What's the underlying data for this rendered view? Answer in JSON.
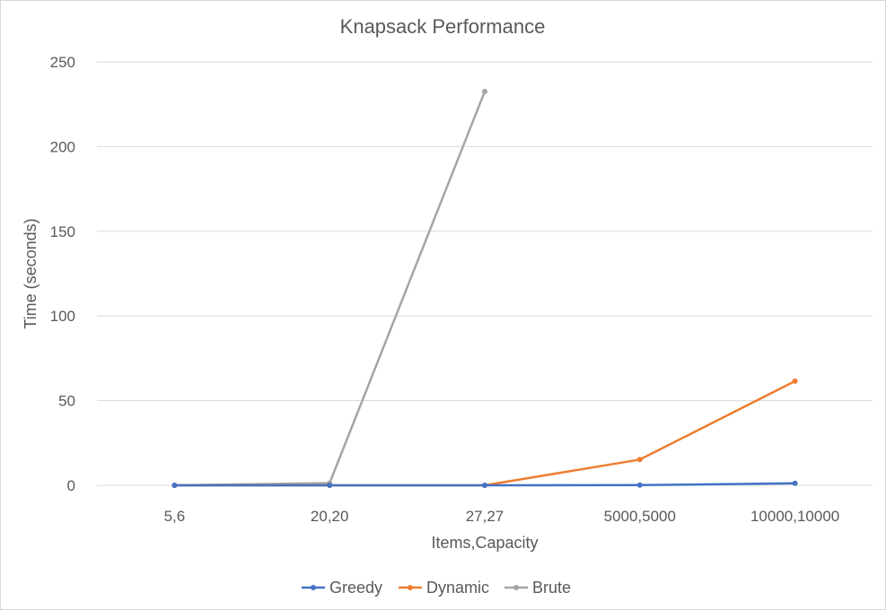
{
  "chart_data": {
    "type": "line",
    "title": "Knapsack Performance",
    "xlabel": "Items,Capacity",
    "ylabel": "Time (seconds)",
    "categories": [
      "5,6",
      "20,20",
      "27,27",
      "5000,5000",
      "10000,10000"
    ],
    "ylim": [
      0,
      250
    ],
    "yticks": [
      0,
      50,
      100,
      150,
      200,
      250
    ],
    "grid": true,
    "legend_position": "bottom",
    "series": [
      {
        "name": "Greedy",
        "color": "#4472c4",
        "values": [
          0,
          0,
          0,
          0.1,
          1.2
        ]
      },
      {
        "name": "Dynamic",
        "color": "#ed7d31",
        "values": [
          0,
          0,
          0,
          15.2,
          61.5
        ]
      },
      {
        "name": "Brute",
        "color": "#a5a5a5",
        "values": [
          0,
          1.3,
          232.5,
          null,
          null
        ]
      }
    ]
  }
}
